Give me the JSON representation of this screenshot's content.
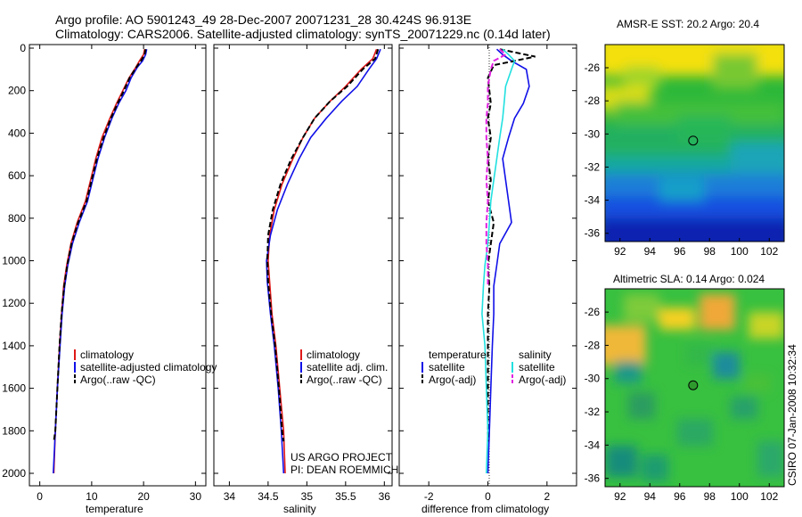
{
  "header": {
    "line1": "Argo profile: AO 5901243_49 28-Dec-2007 20071231_28 30.424S 96.913E",
    "line2": "Climatology: CARS2006. Satellite-adjusted climatology: synTS_20071229.nc (0.14d later)"
  },
  "side_stamp": "CSIRO 07-Jan-2008 10:32:34",
  "credit": {
    "line1": "US ARGO PROJECT",
    "line2": "PI: DEAN ROEMMICH"
  },
  "colors": {
    "climatology": "#e01818",
    "satellite": "#1010e8",
    "argo": "#000000",
    "sat_salinity": "#22e0e0",
    "argo_salinity_adj": "#e020e0"
  },
  "chart_data": [
    {
      "type": "line",
      "id": "temperature",
      "xlabel": "temperature",
      "xlim": [
        -2,
        32
      ],
      "ylim": [
        0,
        2050
      ],
      "y_inverted": true,
      "xticks": [
        0,
        10,
        20,
        30
      ],
      "yticks": [
        0,
        200,
        400,
        600,
        800,
        1000,
        1200,
        1400,
        1600,
        1800,
        2000
      ],
      "legend": [
        "climatology",
        "satellite-adjusted climatology",
        "Argo(..raw -QC)"
      ],
      "series": [
        {
          "name": "climatology",
          "style": "solid",
          "color": "#e01818",
          "points": [
            [
              20.2,
              5
            ],
            [
              20.0,
              30
            ],
            [
              19.2,
              60
            ],
            [
              18.5,
              90
            ],
            [
              17.2,
              140
            ],
            [
              16.0,
              200
            ],
            [
              14.8,
              260
            ],
            [
              13.5,
              330
            ],
            [
              12.0,
              420
            ],
            [
              10.8,
              520
            ],
            [
              9.8,
              620
            ],
            [
              8.8,
              720
            ],
            [
              7.2,
              820
            ],
            [
              6.0,
              920
            ],
            [
              5.2,
              1020
            ],
            [
              4.6,
              1120
            ],
            [
              4.2,
              1250
            ],
            [
              3.8,
              1400
            ],
            [
              3.4,
              1600
            ],
            [
              3.0,
              1800
            ],
            [
              2.7,
              2000
            ]
          ]
        },
        {
          "name": "satellite-adjusted climatology",
          "style": "solid",
          "color": "#1010e8",
          "points": [
            [
              20.6,
              5
            ],
            [
              20.4,
              30
            ],
            [
              19.8,
              60
            ],
            [
              18.8,
              90
            ],
            [
              17.6,
              140
            ],
            [
              16.6,
              200
            ],
            [
              15.2,
              260
            ],
            [
              13.9,
              330
            ],
            [
              12.5,
              420
            ],
            [
              11.2,
              520
            ],
            [
              10.2,
              620
            ],
            [
              9.2,
              720
            ],
            [
              7.6,
              820
            ],
            [
              6.3,
              920
            ],
            [
              5.4,
              1020
            ],
            [
              4.8,
              1120
            ],
            [
              4.3,
              1250
            ],
            [
              3.9,
              1400
            ],
            [
              3.4,
              1600
            ],
            [
              3.0,
              1800
            ],
            [
              2.6,
              2000
            ]
          ]
        },
        {
          "name": "Argo(..raw -QC)",
          "style": "dash",
          "color": "#000000",
          "points": [
            [
              20.4,
              5
            ],
            [
              20.2,
              30
            ],
            [
              19.5,
              60
            ],
            [
              18.6,
              90
            ],
            [
              17.3,
              140
            ],
            [
              16.2,
              200
            ],
            [
              15.0,
              260
            ],
            [
              13.7,
              330
            ],
            [
              12.3,
              420
            ],
            [
              11.0,
              520
            ],
            [
              10.0,
              620
            ],
            [
              9.0,
              720
            ],
            [
              7.4,
              820
            ],
            [
              6.1,
              920
            ],
            [
              5.3,
              1020
            ],
            [
              4.7,
              1120
            ],
            [
              4.2,
              1250
            ],
            [
              3.8,
              1400
            ],
            [
              3.4,
              1600
            ],
            [
              3.0,
              1800
            ],
            [
              2.7,
              1850
            ]
          ]
        }
      ]
    },
    {
      "type": "line",
      "id": "salinity",
      "xlabel": "salinity",
      "xlim": [
        33.8,
        36.1
      ],
      "ylim": [
        0,
        2050
      ],
      "y_inverted": true,
      "xticks": [
        34,
        34.5,
        35,
        35.5,
        36
      ],
      "legend": [
        "climatology",
        "satellite adj. clim.",
        "Argo(..raw -QC)"
      ],
      "series": [
        {
          "name": "climatology",
          "style": "solid",
          "color": "#e01818",
          "points": [
            [
              35.9,
              5
            ],
            [
              35.85,
              50
            ],
            [
              35.7,
              100
            ],
            [
              35.5,
              180
            ],
            [
              35.3,
              250
            ],
            [
              35.1,
              330
            ],
            [
              34.95,
              420
            ],
            [
              34.82,
              520
            ],
            [
              34.68,
              640
            ],
            [
              34.58,
              760
            ],
            [
              34.52,
              880
            ],
            [
              34.5,
              1000
            ],
            [
              34.52,
              1100
            ],
            [
              34.55,
              1250
            ],
            [
              34.6,
              1400
            ],
            [
              34.65,
              1600
            ],
            [
              34.7,
              1800
            ],
            [
              34.72,
              2000
            ]
          ]
        },
        {
          "name": "satellite adj. clim.",
          "style": "solid",
          "color": "#1010e8",
          "points": [
            [
              35.95,
              5
            ],
            [
              35.9,
              50
            ],
            [
              35.8,
              100
            ],
            [
              35.65,
              180
            ],
            [
              35.45,
              250
            ],
            [
              35.25,
              330
            ],
            [
              35.05,
              420
            ],
            [
              34.9,
              520
            ],
            [
              34.75,
              640
            ],
            [
              34.62,
              760
            ],
            [
              34.53,
              880
            ],
            [
              34.48,
              1000
            ],
            [
              34.49,
              1100
            ],
            [
              34.53,
              1250
            ],
            [
              34.58,
              1400
            ],
            [
              34.63,
              1600
            ],
            [
              34.67,
              1800
            ],
            [
              34.7,
              2000
            ]
          ]
        },
        {
          "name": "Argo(..raw -QC)",
          "style": "dash",
          "color": "#000000",
          "points": [
            [
              35.92,
              5
            ],
            [
              35.88,
              50
            ],
            [
              35.72,
              100
            ],
            [
              35.52,
              180
            ],
            [
              35.3,
              250
            ],
            [
              35.1,
              330
            ],
            [
              34.95,
              420
            ],
            [
              34.8,
              520
            ],
            [
              34.66,
              640
            ],
            [
              34.56,
              760
            ],
            [
              34.5,
              880
            ],
            [
              34.49,
              1000
            ],
            [
              34.5,
              1100
            ],
            [
              34.54,
              1250
            ],
            [
              34.59,
              1400
            ],
            [
              34.64,
              1600
            ],
            [
              34.68,
              1800
            ],
            [
              34.7,
              1850
            ]
          ]
        }
      ]
    },
    {
      "type": "line",
      "id": "difference",
      "xlabel": "difference from climatology",
      "xlim": [
        -3.0,
        3.0
      ],
      "ylim": [
        0,
        2050
      ],
      "y_inverted": true,
      "xticks": [
        -2,
        0,
        2
      ],
      "legend_left_title": "temperature",
      "legend_right_title": "salinity",
      "legend": [
        "satellite",
        "Argo(-adj)",
        "satellite",
        "Argo(-adj)"
      ],
      "series": [
        {
          "name": "satellite",
          "quantity": "temperature",
          "style": "solid",
          "color": "#1010e8",
          "points": [
            [
              0.3,
              5
            ],
            [
              0.5,
              30
            ],
            [
              0.8,
              60
            ],
            [
              1.3,
              100
            ],
            [
              1.4,
              180
            ],
            [
              1.2,
              260
            ],
            [
              0.9,
              330
            ],
            [
              0.7,
              420
            ],
            [
              0.5,
              520
            ],
            [
              0.6,
              620
            ],
            [
              0.7,
              720
            ],
            [
              0.8,
              820
            ],
            [
              0.4,
              920
            ],
            [
              0.3,
              1020
            ],
            [
              0.2,
              1120
            ],
            [
              0.2,
              1250
            ],
            [
              0.15,
              1400
            ],
            [
              0.1,
              1600
            ],
            [
              0.05,
              1800
            ],
            [
              0.0,
              2000
            ]
          ]
        },
        {
          "name": "Argo(-adj)",
          "quantity": "temperature",
          "style": "dash",
          "color": "#000000",
          "points": [
            [
              0.4,
              5
            ],
            [
              1.6,
              40
            ],
            [
              0.2,
              80
            ],
            [
              0.0,
              140
            ],
            [
              0.1,
              260
            ],
            [
              0.0,
              330
            ],
            [
              0.1,
              420
            ],
            [
              0.0,
              520
            ],
            [
              0.1,
              620
            ],
            [
              0.0,
              720
            ],
            [
              0.2,
              820
            ],
            [
              0.1,
              920
            ],
            [
              0.0,
              1020
            ],
            [
              0.05,
              1120
            ],
            [
              0.0,
              1250
            ],
            [
              0.0,
              1400
            ],
            [
              0.0,
              1600
            ],
            [
              0.0,
              1800
            ],
            [
              0.0,
              1850
            ]
          ]
        },
        {
          "name": "satellite",
          "quantity": "salinity",
          "style": "solid",
          "color": "#22e0e0",
          "points": [
            [
              0.5,
              5
            ],
            [
              0.7,
              30
            ],
            [
              0.9,
              60
            ],
            [
              0.8,
              100
            ],
            [
              0.6,
              180
            ],
            [
              0.55,
              260
            ],
            [
              0.5,
              330
            ],
            [
              0.4,
              420
            ],
            [
              0.3,
              520
            ],
            [
              0.2,
              620
            ],
            [
              0.1,
              720
            ],
            [
              0.05,
              820
            ],
            [
              0.0,
              920
            ],
            [
              -0.1,
              1020
            ],
            [
              -0.15,
              1120
            ],
            [
              -0.2,
              1250
            ],
            [
              -0.1,
              1400
            ],
            [
              -0.05,
              1600
            ],
            [
              0.0,
              1800
            ],
            [
              -0.05,
              2000
            ]
          ]
        },
        {
          "name": "Argo(-adj)",
          "quantity": "salinity",
          "style": "dash",
          "color": "#e020e0",
          "points": [
            [
              0.4,
              5
            ],
            [
              0.6,
              30
            ],
            [
              0.2,
              60
            ],
            [
              0.1,
              100
            ],
            [
              0.0,
              180
            ],
            [
              0.0,
              260
            ],
            [
              -0.05,
              330
            ],
            [
              -0.05,
              420
            ],
            [
              0.0,
              520
            ],
            [
              -0.05,
              620
            ],
            [
              0.0,
              720
            ],
            [
              -0.05,
              820
            ],
            [
              -0.05,
              920
            ],
            [
              0.0,
              1020
            ],
            [
              0.0,
              1120
            ]
          ]
        }
      ]
    },
    {
      "type": "heatmap",
      "id": "amsre-sst",
      "title": "AMSR-E SST: 20.2 Argo: 20.4",
      "xlim": [
        91,
        103
      ],
      "ylim": [
        -36.5,
        -24.6
      ],
      "xticks": [
        92,
        94,
        96,
        98,
        100,
        102
      ],
      "yticks": [
        -26,
        -28,
        -30,
        -32,
        -34,
        -36
      ],
      "marker": {
        "lon": 96.9,
        "lat": -30.4,
        "fill": "none"
      }
    },
    {
      "type": "heatmap",
      "id": "altimetric-sla",
      "title": "Altimetric SLA: 0.14 Argo: 0.024",
      "xlim": [
        91,
        103
      ],
      "ylim": [
        -36.5,
        -24.6
      ],
      "xticks": [
        92,
        94,
        96,
        98,
        100,
        102
      ],
      "yticks": [
        -26,
        -28,
        -30,
        -32,
        -34,
        -36
      ],
      "marker": {
        "lon": 96.9,
        "lat": -30.4,
        "fill": "green"
      }
    }
  ]
}
